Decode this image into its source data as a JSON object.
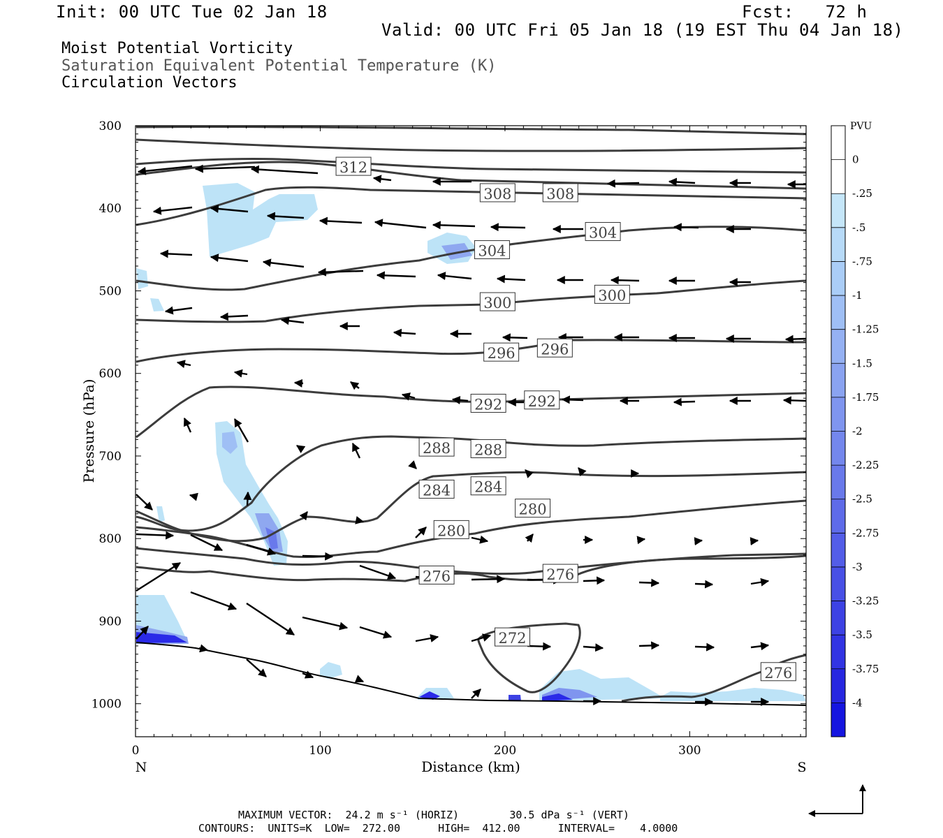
{
  "header": {
    "init": "Init: 00 UTC Tue 02 Jan 18",
    "fcst": "Fcst:   72 h",
    "valid": "Valid: 00 UTC Fri 05 Jan 18 (19 EST Thu 04 Jan 18)"
  },
  "legend_text": {
    "line1": "Moist Potential Vorticity",
    "line2": "Saturation Equivalent Potential Temperature (K)",
    "line3": "Circulation Vectors"
  },
  "colors": {
    "contour": "#3c3c3c",
    "fill_light": "#bde3f7",
    "fill_mid": "#8fa8f0",
    "fill_dark": "#2a2ae8"
  },
  "footer": {
    "line1": "MAXIMUM VECTOR:  24.2 m s⁻¹ (HORIZ)        30.5 dPa s⁻¹ (VERT)",
    "line2": "CONTOURS:  UNITS=K  LOW=  272.00      HIGH=  412.00      INTERVAL=    4.0000"
  },
  "chart_data": {
    "type": "cross-section",
    "xlabel": "Distance (km)",
    "ylabel": "Pressure (hPa)",
    "x_left_label": "N",
    "x_right_label": "S",
    "xlim": [
      0,
      363
    ],
    "ylim": [
      1040,
      300
    ],
    "x_ticks": [
      0,
      100,
      200,
      300
    ],
    "y_ticks": [
      300,
      400,
      500,
      600,
      700,
      800,
      900,
      1000
    ],
    "colorbar": {
      "unit": "PVU",
      "levels": [
        "0",
        "-.25",
        "-.5",
        "-.75",
        "-1",
        "-1.25",
        "-1.5",
        "-1.75",
        "-2",
        "-2.25",
        "-2.5",
        "-2.75",
        "-3",
        "-3.25",
        "-3.5",
        "-3.75",
        "-4"
      ],
      "colors": [
        "#ffffff",
        "#ffffff",
        "#c5e6f9",
        "#b7daf8",
        "#aacdf7",
        "#9fbff5",
        "#95b1f3",
        "#8aa3f1",
        "#7f95ef",
        "#7487ed",
        "#6979eb",
        "#5e6be9",
        "#535de8",
        "#4850e6",
        "#3d42e4",
        "#3234e3",
        "#2727e1",
        "#1515e0"
      ]
    },
    "contour_labels": [
      {
        "value": "312",
        "x": 118,
        "p": 350
      },
      {
        "value": "308",
        "x": 196,
        "p": 382
      },
      {
        "value": "308",
        "x": 230,
        "p": 382
      },
      {
        "value": "304",
        "x": 253,
        "p": 429
      },
      {
        "value": "304",
        "x": 193,
        "p": 451
      },
      {
        "value": "300",
        "x": 196,
        "p": 514
      },
      {
        "value": "300",
        "x": 258,
        "p": 505
      },
      {
        "value": "296",
        "x": 198,
        "p": 575
      },
      {
        "value": "296",
        "x": 227,
        "p": 570
      },
      {
        "value": "292",
        "x": 191,
        "p": 637
      },
      {
        "value": "292",
        "x": 220,
        "p": 633
      },
      {
        "value": "288",
        "x": 163,
        "p": 690
      },
      {
        "value": "288",
        "x": 191,
        "p": 692
      },
      {
        "value": "284",
        "x": 163,
        "p": 741
      },
      {
        "value": "284",
        "x": 191,
        "p": 737
      },
      {
        "value": "280",
        "x": 171,
        "p": 790
      },
      {
        "value": "280",
        "x": 215,
        "p": 764
      },
      {
        "value": "276",
        "x": 163,
        "p": 845
      },
      {
        "value": "276",
        "x": 230,
        "p": 843
      },
      {
        "value": "272",
        "x": 204,
        "p": 920
      },
      {
        "value": "276",
        "x": 348,
        "p": 962
      }
    ]
  }
}
